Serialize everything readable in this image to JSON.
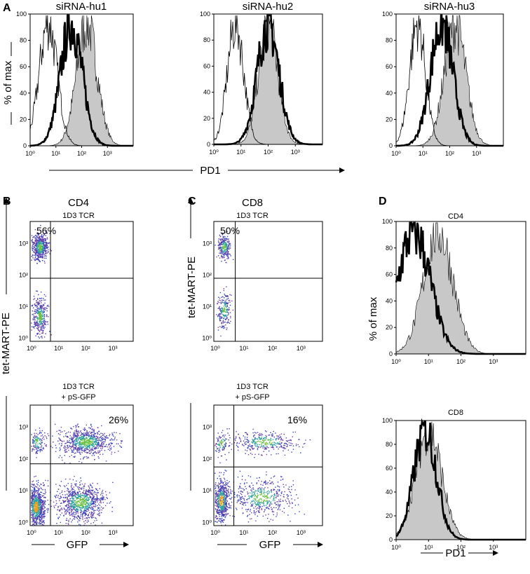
{
  "panel_a": {
    "label": "A",
    "titles": [
      "siRNA-hu1",
      "siRNA-hu2",
      "siRNA-hu3"
    ],
    "y_axis_label": "% of max",
    "x_axis_label": "PD1",
    "yticks": [
      0,
      20,
      40,
      60,
      80,
      100
    ],
    "xticks": [
      "10⁰",
      "10¹",
      "10²",
      "10³"
    ]
  },
  "panel_b": {
    "label": "B",
    "title": "CD4",
    "top": {
      "subtitle": "1D3 TCR",
      "percent": "56%"
    },
    "bottom": {
      "subtitle": [
        "1D3 TCR",
        "+ pS-GFP"
      ],
      "percent": "26%"
    },
    "y_axis_label": "tet-MART-PE",
    "x_axis_label": "GFP",
    "ticks": [
      "10⁰",
      "10¹",
      "10²",
      "10³"
    ]
  },
  "panel_c": {
    "label": "C",
    "title": "CD8",
    "top": {
      "subtitle": "1D3 TCR",
      "percent": "50%"
    },
    "bottom": {
      "subtitle": [
        "1D3 TCR",
        "+ pS-GFP"
      ],
      "percent": "16%"
    },
    "y_axis_label": "tet-MART-PE",
    "x_axis_label": "GFP",
    "ticks": [
      "10⁰",
      "10¹",
      "10²",
      "10³"
    ]
  },
  "panel_d": {
    "label": "D",
    "titles": [
      "CD4",
      "CD8"
    ],
    "y_axis_label": "% of max",
    "x_axis_label": "PD1",
    "yticks": [
      0,
      20,
      40,
      60,
      80,
      100
    ],
    "xticks": [
      "10⁰",
      "10¹",
      "10²",
      "10³"
    ]
  }
}
